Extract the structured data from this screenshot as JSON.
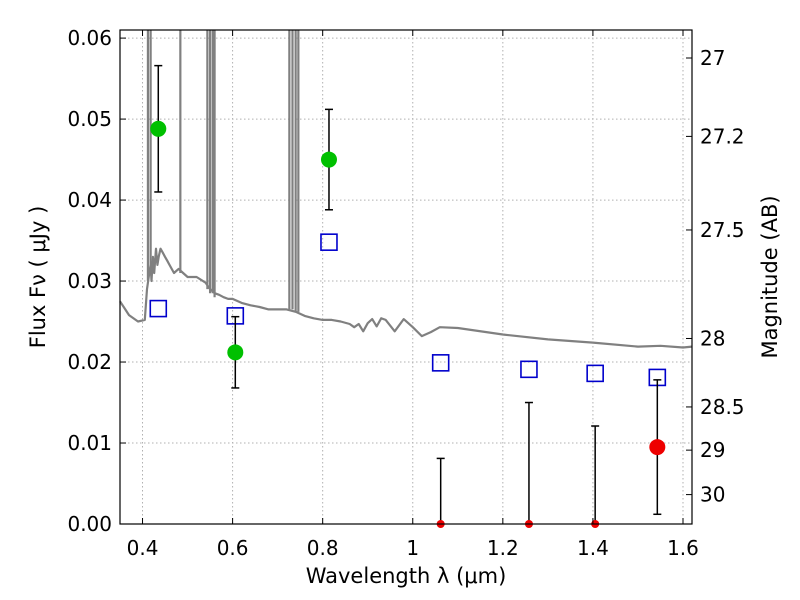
{
  "chart_data": {
    "type": "scatter",
    "xlabel": "Wavelength  λ (μm)",
    "ylabel": "Flux  Fν  ( μJy )",
    "ylabel_right": "Magnitude (AB)",
    "xlim": [
      0.35,
      1.62
    ],
    "ylim": [
      0.0,
      0.061
    ],
    "grid": true,
    "x_ticks": [
      {
        "value": 0.4,
        "label": "0.4"
      },
      {
        "value": 0.6,
        "label": "0.6"
      },
      {
        "value": 0.8,
        "label": "0.8"
      },
      {
        "value": 1.0,
        "label": "1"
      },
      {
        "value": 1.2,
        "label": "1.2"
      },
      {
        "value": 1.4,
        "label": "1.4"
      },
      {
        "value": 1.6,
        "label": "1.6"
      }
    ],
    "y_ticks": [
      {
        "value": 0.0,
        "label": "0.00"
      },
      {
        "value": 0.01,
        "label": "0.01"
      },
      {
        "value": 0.02,
        "label": "0.02"
      },
      {
        "value": 0.03,
        "label": "0.03"
      },
      {
        "value": 0.04,
        "label": "0.04"
      },
      {
        "value": 0.05,
        "label": "0.05"
      },
      {
        "value": 0.06,
        "label": "0.06"
      }
    ],
    "right_ticks": [
      {
        "mag": 27,
        "label": "27"
      },
      {
        "mag": 27.2,
        "label": "27.2"
      },
      {
        "mag": 27.5,
        "label": "27.5"
      },
      {
        "mag": 28,
        "label": "28"
      },
      {
        "mag": 28.5,
        "label": "28.5"
      },
      {
        "mag": 29,
        "label": "29"
      },
      {
        "mag": 30,
        "label": "30"
      }
    ],
    "colors": {
      "model": "#808080",
      "detection": "#00c000",
      "nondetection": "#ee0000",
      "model_photometry": "#0000cc",
      "errorbar": "#000000",
      "grid": "#b0b0b0"
    },
    "series": [
      {
        "kind": "model-spectrum",
        "x": [
          0.35,
          0.37,
          0.39,
          0.405,
          0.41,
          0.415,
          0.418,
          0.42,
          0.423,
          0.426,
          0.43,
          0.433,
          0.436,
          0.44,
          0.445,
          0.45,
          0.455,
          0.46,
          0.47,
          0.48,
          0.49,
          0.5,
          0.52,
          0.54,
          0.55,
          0.56,
          0.57,
          0.58,
          0.59,
          0.6,
          0.62,
          0.64,
          0.66,
          0.68,
          0.7,
          0.72,
          0.74,
          0.76,
          0.78,
          0.8,
          0.82,
          0.84,
          0.86,
          0.87,
          0.88,
          0.89,
          0.9,
          0.91,
          0.92,
          0.93,
          0.94,
          0.96,
          0.98,
          1.0,
          1.02,
          1.04,
          1.06,
          1.1,
          1.2,
          1.3,
          1.4,
          1.5,
          1.55,
          1.6,
          1.62
        ],
        "y": [
          0.0275,
          0.0258,
          0.025,
          0.0252,
          0.029,
          0.031,
          0.032,
          0.03,
          0.033,
          0.031,
          0.034,
          0.032,
          0.033,
          0.034,
          0.0335,
          0.033,
          0.0325,
          0.032,
          0.031,
          0.0315,
          0.031,
          0.0305,
          0.0305,
          0.0298,
          0.029,
          0.0285,
          0.0283,
          0.028,
          0.0278,
          0.0278,
          0.0273,
          0.027,
          0.0268,
          0.0265,
          0.0265,
          0.0265,
          0.0262,
          0.0257,
          0.0254,
          0.0252,
          0.0252,
          0.025,
          0.0247,
          0.0243,
          0.0247,
          0.0238,
          0.0248,
          0.0253,
          0.0244,
          0.0254,
          0.0252,
          0.0238,
          0.0253,
          0.0243,
          0.0232,
          0.0237,
          0.0243,
          0.0242,
          0.0234,
          0.0228,
          0.0224,
          0.0219,
          0.022,
          0.0218,
          0.0219
        ]
      },
      {
        "kind": "emission-lines",
        "x": [
          0.412,
          0.418,
          0.484,
          0.544,
          0.55,
          0.556,
          0.56,
          0.726,
          0.733,
          0.74,
          0.746
        ],
        "y": [
          0.061,
          0.061,
          0.061,
          0.061,
          0.061,
          0.061,
          0.061,
          0.061,
          0.061,
          0.061,
          0.061
        ],
        "base": [
          0.03,
          0.031,
          0.031,
          0.029,
          0.0285,
          0.0285,
          0.028,
          0.0265,
          0.0265,
          0.0262,
          0.0262
        ]
      },
      {
        "kind": "model-photometry",
        "x": [
          0.435,
          0.606,
          0.814,
          1.062,
          1.258,
          1.405,
          1.543
        ],
        "y": [
          0.0266,
          0.0257,
          0.0348,
          0.0199,
          0.0191,
          0.0186,
          0.0181
        ]
      },
      {
        "kind": "observed-detections",
        "x": [
          0.435,
          0.606,
          0.814
        ],
        "y": [
          0.0488,
          0.0212,
          0.045
        ],
        "err_low": [
          0.041,
          0.0168,
          0.0388
        ],
        "err_high": [
          0.0566,
          0.0256,
          0.0512
        ]
      },
      {
        "kind": "observed-nondetections",
        "x": [
          1.062,
          1.258,
          1.405,
          1.543
        ],
        "y": [
          0.0,
          0.0,
          0.0,
          0.0095
        ],
        "err_low": [
          0.0,
          0.0,
          0.0,
          0.0012
        ],
        "err_high": [
          0.0081,
          0.015,
          0.0121,
          0.0178
        ]
      }
    ]
  }
}
